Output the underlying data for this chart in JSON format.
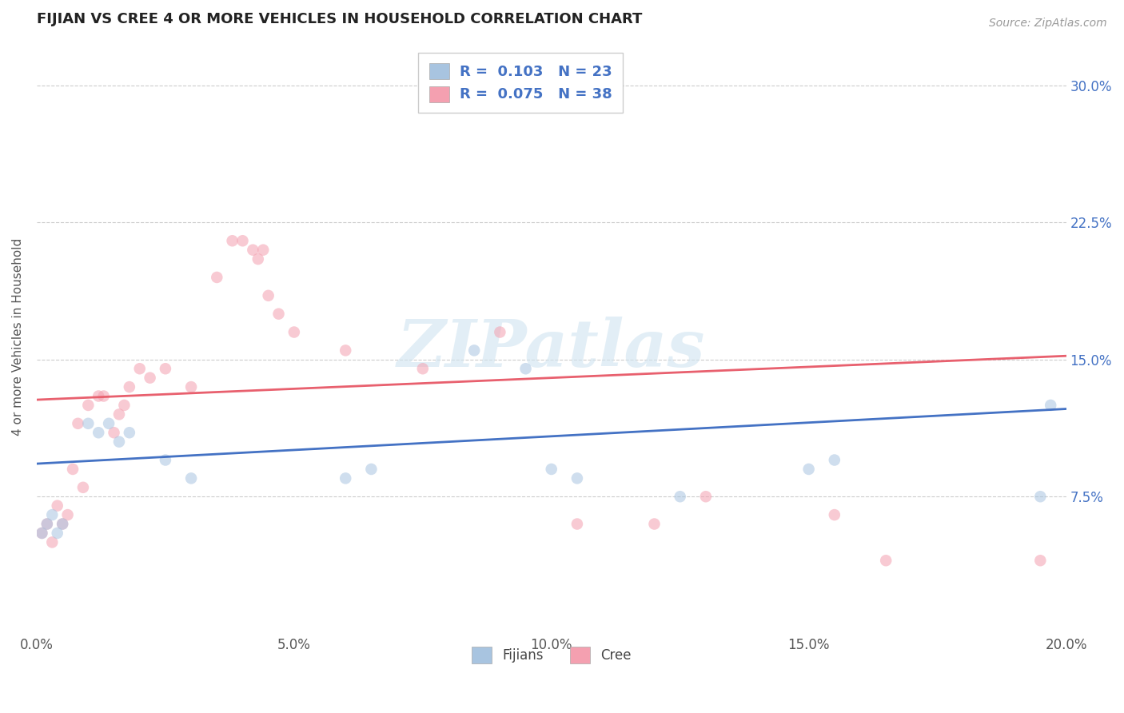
{
  "title": "FIJIAN VS CREE 4 OR MORE VEHICLES IN HOUSEHOLD CORRELATION CHART",
  "source": "Source: ZipAtlas.com",
  "ylabel": "4 or more Vehicles in Household",
  "xmin": 0.0,
  "xmax": 0.2,
  "ymin": 0.0,
  "ymax": 0.325,
  "xtick_labels": [
    "0.0%",
    "5.0%",
    "10.0%",
    "15.0%",
    "20.0%"
  ],
  "xtick_values": [
    0.0,
    0.05,
    0.1,
    0.15,
    0.2
  ],
  "ytick_labels": [
    "7.5%",
    "15.0%",
    "22.5%",
    "30.0%"
  ],
  "ytick_values": [
    0.075,
    0.15,
    0.225,
    0.3
  ],
  "fijian_color": "#a8c4e0",
  "cree_color": "#f4a0b0",
  "fijian_line_color": "#4472c4",
  "cree_line_color": "#e8606e",
  "legend_text_color": "#4472c4",
  "watermark": "ZIPatlas",
  "fijian_R": 0.103,
  "fijian_N": 23,
  "cree_R": 0.075,
  "cree_N": 38,
  "fijian_line_y0": 0.093,
  "fijian_line_y1": 0.123,
  "cree_line_y0": 0.128,
  "cree_line_y1": 0.152,
  "fijians_x": [
    0.001,
    0.002,
    0.003,
    0.004,
    0.005,
    0.01,
    0.012,
    0.014,
    0.016,
    0.018,
    0.025,
    0.03,
    0.06,
    0.065,
    0.085,
    0.095,
    0.1,
    0.105,
    0.125,
    0.15,
    0.155,
    0.195,
    0.197
  ],
  "fijians_y": [
    0.055,
    0.06,
    0.065,
    0.055,
    0.06,
    0.115,
    0.11,
    0.115,
    0.105,
    0.11,
    0.095,
    0.085,
    0.085,
    0.09,
    0.155,
    0.145,
    0.09,
    0.085,
    0.075,
    0.09,
    0.095,
    0.075,
    0.125
  ],
  "cree_x": [
    0.001,
    0.002,
    0.003,
    0.004,
    0.005,
    0.006,
    0.007,
    0.008,
    0.009,
    0.01,
    0.012,
    0.013,
    0.015,
    0.016,
    0.017,
    0.018,
    0.02,
    0.022,
    0.025,
    0.03,
    0.035,
    0.038,
    0.04,
    0.042,
    0.043,
    0.044,
    0.045,
    0.047,
    0.05,
    0.06,
    0.075,
    0.09,
    0.105,
    0.12,
    0.13,
    0.155,
    0.165,
    0.195
  ],
  "cree_y": [
    0.055,
    0.06,
    0.05,
    0.07,
    0.06,
    0.065,
    0.09,
    0.115,
    0.08,
    0.125,
    0.13,
    0.13,
    0.11,
    0.12,
    0.125,
    0.135,
    0.145,
    0.14,
    0.145,
    0.135,
    0.195,
    0.215,
    0.215,
    0.21,
    0.205,
    0.21,
    0.185,
    0.175,
    0.165,
    0.155,
    0.145,
    0.165,
    0.06,
    0.06,
    0.075,
    0.065,
    0.04,
    0.04
  ],
  "background_color": "#ffffff",
  "grid_color": "#cccccc",
  "marker_size_fijian": 110,
  "marker_size_cree": 110,
  "marker_alpha": 0.55
}
